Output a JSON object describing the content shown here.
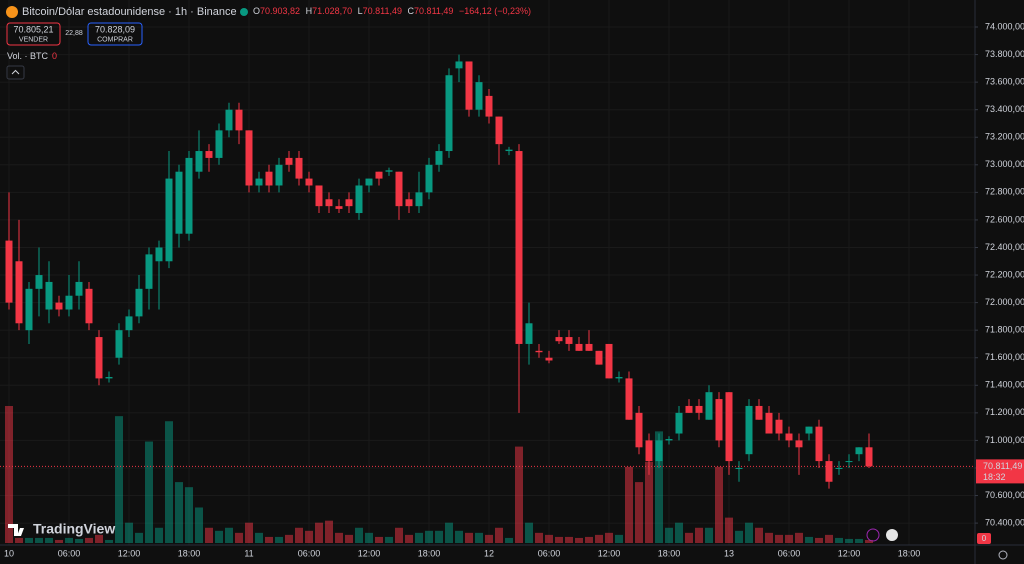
{
  "header": {
    "title": "Bitcoin/Dólar estadounidense · 1h · Binance",
    "ohlc": [
      {
        "key": "O",
        "value": "70.903,82"
      },
      {
        "key": "H",
        "value": "71.028,70"
      },
      {
        "key": "L",
        "value": "70.811,49"
      },
      {
        "key": "C",
        "value": "70.811,49"
      }
    ],
    "change": "−164,12 (−0,23%)",
    "sell_price": "70.805,21",
    "sell_label": "VENDER",
    "spread": "22,88",
    "buy_price": "70.828,09",
    "buy_label": "COMPRAR",
    "volume_label": "Vol. · BTC",
    "volume_value": "0",
    "logo": "TradingView",
    "corner_value": "0"
  },
  "chart_data": {
    "type": "candlestick",
    "up_color": "#089981",
    "down_color": "#f23645",
    "grid": true,
    "x": [
      0,
      1,
      2,
      3,
      4,
      5,
      6,
      7,
      8,
      9,
      10,
      11,
      12,
      13,
      14,
      15,
      16,
      17,
      18,
      19,
      20,
      21,
      22,
      23,
      24,
      25,
      26,
      27,
      28,
      29,
      30,
      31,
      32,
      33,
      34,
      35,
      36,
      37,
      38,
      39,
      40,
      41,
      42,
      43,
      44,
      45,
      46,
      47,
      48,
      49,
      50,
      51,
      52,
      53,
      54,
      55,
      56,
      57,
      58,
      59,
      60,
      61,
      62,
      63,
      64,
      65,
      66,
      67,
      68,
      69,
      70,
      71,
      72,
      73,
      74,
      75,
      76,
      77,
      78,
      79,
      80,
      81,
      82,
      83,
      84,
      85,
      86
    ],
    "open": [
      72450,
      72300,
      71800,
      72100,
      71950,
      72000,
      71950,
      72050,
      72100,
      71750,
      71450,
      71600,
      71800,
      71900,
      72100,
      72300,
      72300,
      72500,
      72500,
      72950,
      73100,
      73050,
      73250,
      73400,
      73250,
      72850,
      72950,
      72850,
      73050,
      73050,
      72900,
      72850,
      72750,
      72700,
      72750,
      72650,
      72850,
      72950,
      72950,
      72950,
      72750,
      72700,
      72800,
      73000,
      73100,
      73700,
      73750,
      73400,
      73500,
      73350,
      73100,
      73100,
      71700,
      71650,
      71600,
      71750,
      71750,
      71700,
      71700,
      71650,
      71700,
      71450,
      71450,
      71200,
      71000,
      70850,
      71000,
      71050,
      71250,
      71250,
      71150,
      71300,
      71350,
      70800,
      70900,
      71250,
      71200,
      71150,
      71050,
      71000,
      71050,
      71100,
      70850,
      70800,
      70850,
      70900,
      70950
    ],
    "high": [
      72800,
      72600,
      72150,
      72400,
      72300,
      72050,
      72200,
      72300,
      72150,
      71800,
      71500,
      71850,
      71950,
      72200,
      72400,
      72450,
      73100,
      73000,
      73100,
      73250,
      73150,
      73300,
      73450,
      73450,
      73250,
      72950,
      73000,
      73050,
      73100,
      73100,
      72950,
      72850,
      72800,
      72750,
      72800,
      72900,
      72900,
      72950,
      72980,
      72950,
      72800,
      72950,
      73050,
      73150,
      73700,
      73800,
      73750,
      73650,
      73550,
      73350,
      73130,
      73150,
      72000,
      71700,
      71650,
      71800,
      71800,
      71750,
      71800,
      71650,
      71700,
      71500,
      71500,
      71250,
      71050,
      71050,
      71030,
      71250,
      71300,
      71300,
      71400,
      71350,
      71350,
      70850,
      71300,
      71300,
      71250,
      71200,
      71100,
      71050,
      71100,
      71150,
      70900,
      70850,
      70900,
      70950,
      71050
    ],
    "low": [
      71950,
      71800,
      71700,
      71900,
      71850,
      71900,
      71900,
      71950,
      71800,
      71400,
      71420,
      71550,
      71750,
      71850,
      71950,
      71950,
      72250,
      72400,
      72450,
      72900,
      72950,
      73000,
      73200,
      73150,
      72800,
      72800,
      72800,
      72800,
      72950,
      72850,
      72800,
      72650,
      72650,
      72650,
      72650,
      72600,
      72800,
      72850,
      72920,
      72600,
      72650,
      72650,
      72750,
      72950,
      73050,
      73600,
      73350,
      73350,
      73300,
      73000,
      73070,
      71200,
      71550,
      71600,
      71560,
      71700,
      71650,
      71650,
      71650,
      71550,
      71450,
      71420,
      71150,
      70900,
      70750,
      70800,
      70970,
      71000,
      71200,
      71150,
      71150,
      70950,
      70750,
      70700,
      70850,
      71150,
      71050,
      71000,
      70950,
      70750,
      71000,
      70800,
      70650,
      70750,
      70800,
      70850,
      70800
    ],
    "close": [
      72000,
      71850,
      72100,
      72200,
      72150,
      71950,
      72050,
      72150,
      71850,
      71450,
      71460,
      71800,
      71900,
      72100,
      72350,
      72400,
      72900,
      72950,
      73050,
      73100,
      73050,
      73250,
      73400,
      73250,
      72850,
      72900,
      72850,
      73000,
      73000,
      72900,
      72850,
      72700,
      72700,
      72680,
      72700,
      72850,
      72900,
      72900,
      72960,
      72700,
      72700,
      72800,
      73000,
      73100,
      73650,
      73750,
      73400,
      73600,
      73350,
      73150,
      73110,
      71700,
      71850,
      71640,
      71580,
      71720,
      71700,
      71650,
      71650,
      71550,
      71450,
      71460,
      71150,
      70950,
      70850,
      71000,
      71010,
      71200,
      71200,
      71200,
      71350,
      71000,
      70850,
      70800,
      71250,
      71150,
      71050,
      71050,
      71000,
      70950,
      71100,
      70850,
      70700,
      70800,
      70850,
      70950,
      70811.49
    ],
    "volume": [
      135,
      5,
      5,
      5,
      5,
      3,
      5,
      4,
      5,
      8,
      3,
      125,
      20,
      10,
      100,
      15,
      120,
      60,
      55,
      35,
      15,
      12,
      15,
      10,
      20,
      10,
      6,
      6,
      8,
      15,
      12,
      20,
      22,
      10,
      8,
      15,
      10,
      6,
      6,
      15,
      8,
      10,
      12,
      12,
      20,
      12,
      10,
      10,
      8,
      15,
      5,
      95,
      20,
      10,
      8,
      6,
      6,
      5,
      6,
      8,
      10,
      8,
      75,
      60,
      80,
      110,
      15,
      20,
      10,
      15,
      15,
      75,
      25,
      12,
      20,
      15,
      10,
      8,
      8,
      10,
      6,
      5,
      8,
      5,
      4,
      4,
      3
    ],
    "xlim": [
      -0.9,
      96.6
    ],
    "xticks": [
      {
        "value": 0,
        "label": "10"
      },
      {
        "value": 6,
        "label": "06:00"
      },
      {
        "value": 12,
        "label": "12:00"
      },
      {
        "value": 18,
        "label": "18:00"
      },
      {
        "value": 24,
        "label": "11"
      },
      {
        "value": 30,
        "label": "06:00"
      },
      {
        "value": 36,
        "label": "12:00"
      },
      {
        "value": 42,
        "label": "18:00"
      },
      {
        "value": 48,
        "label": "12"
      },
      {
        "value": 54,
        "label": "06:00"
      },
      {
        "value": 60,
        "label": "12:00"
      },
      {
        "value": 66,
        "label": "18:00"
      },
      {
        "value": 72,
        "label": "13"
      },
      {
        "value": 78,
        "label": "06:00"
      },
      {
        "value": 84,
        "label": "12:00"
      },
      {
        "value": 90,
        "label": "18:00"
      }
    ],
    "ylim": [
      70241,
      74196
    ],
    "yticks": [
      {
        "value": 74000,
        "label": "74.000,00"
      },
      {
        "value": 73800,
        "label": "73.800,00"
      },
      {
        "value": 73600,
        "label": "73.600,00"
      },
      {
        "value": 73400,
        "label": "73.400,00"
      },
      {
        "value": 73200,
        "label": "73.200,00"
      },
      {
        "value": 73000,
        "label": "73.000,00"
      },
      {
        "value": 72800,
        "label": "72.800,00"
      },
      {
        "value": 72600,
        "label": "72.600,00"
      },
      {
        "value": 72400,
        "label": "72.400,00"
      },
      {
        "value": 72200,
        "label": "72.200,00"
      },
      {
        "value": 72000,
        "label": "72.000,00"
      },
      {
        "value": 71800,
        "label": "71.800,00"
      },
      {
        "value": 71600,
        "label": "71.600,00"
      },
      {
        "value": 71400,
        "label": "71.400,00"
      },
      {
        "value": 71200,
        "label": "71.200,00"
      },
      {
        "value": 71000,
        "label": "71.000,00"
      },
      {
        "value": 70800,
        "label": "70.800,00"
      },
      {
        "value": 70600,
        "label": "70.600,00"
      },
      {
        "value": 70400,
        "label": "70.400,00"
      }
    ],
    "last_price": 70811.49,
    "last_price_label": "70.811,49",
    "countdown": "18:32"
  }
}
